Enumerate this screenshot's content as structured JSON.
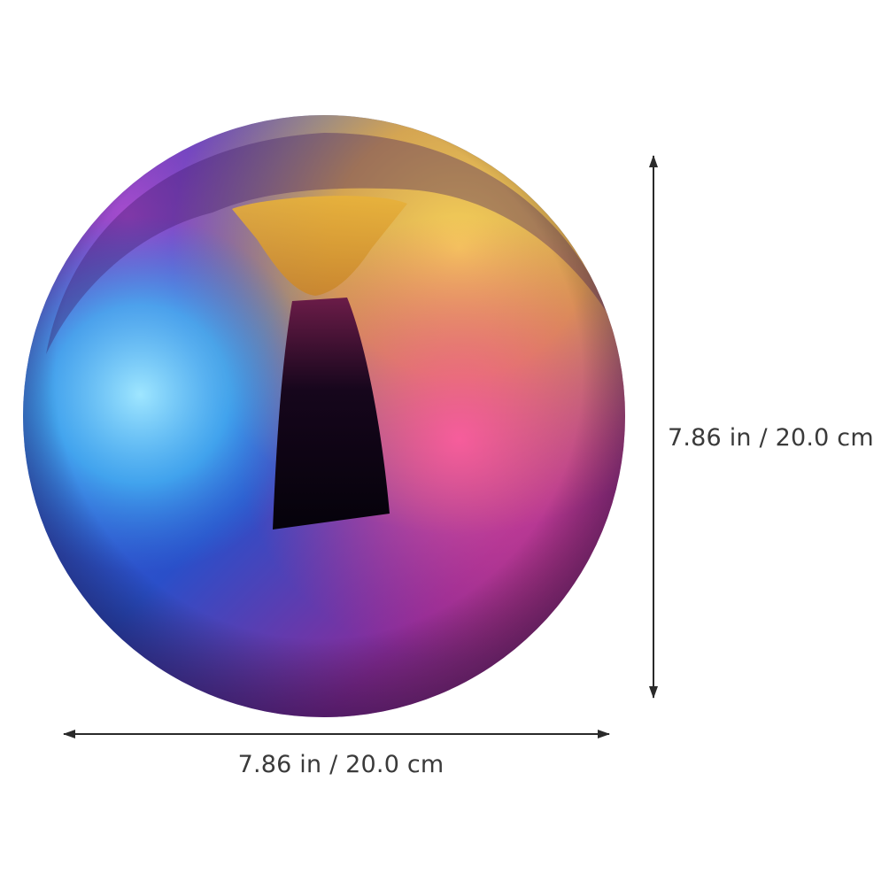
{
  "product": {
    "name_icon": "iridescent-gazing-ball",
    "colors": {
      "gold": "#f0c24a",
      "magenta": "#d9337e",
      "blue": "#2f7de0",
      "cyan": "#6fd3ff",
      "purple": "#4d2a8f",
      "dark_reflection": "#1a0a22"
    }
  },
  "dimensions": {
    "width_label": "7.86 in / 20.0 cm",
    "height_label": "7.86 in / 20.0 cm",
    "arrow_color": "#2a2a2a"
  }
}
